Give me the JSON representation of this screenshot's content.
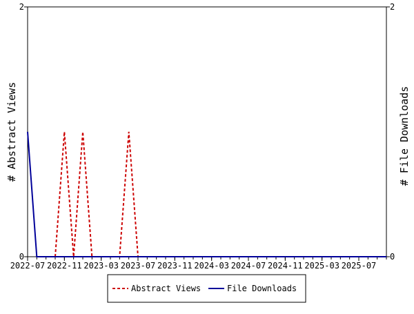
{
  "chart_data": {
    "type": "line",
    "x_tick_labels": [
      "2022-07",
      "2022-11",
      "2023-03",
      "2023-07",
      "2023-11",
      "2024-03",
      "2024-07",
      "2024-11",
      "2025-03",
      "2025-07"
    ],
    "x_tick_months": [
      "2022-07",
      "2022-11",
      "2023-03",
      "2023-07",
      "2023-11",
      "2024-03",
      "2024-07",
      "2024-11",
      "2025-03",
      "2025-07"
    ],
    "x_range": [
      "2022-07",
      "2025-10"
    ],
    "y_left": {
      "label": "# Abstract Views",
      "range": [
        0,
        2
      ],
      "ticks": [
        "0",
        "2"
      ]
    },
    "y_right": {
      "label": "# File Downloads",
      "range": [
        0,
        2
      ],
      "ticks": [
        "0",
        "2"
      ]
    },
    "grid": false,
    "legend_position": "bottom",
    "series": [
      {
        "name": "Abstract Views",
        "axis": "left",
        "color": "#cc0000",
        "style": "dashed",
        "points": [
          [
            "2022-10",
            0
          ],
          [
            "2022-11",
            1
          ],
          [
            "2022-12",
            0
          ],
          [
            "2023-01",
            1
          ],
          [
            "2023-02",
            0
          ],
          [
            "2023-05",
            0
          ],
          [
            "2023-06",
            1
          ],
          [
            "2023-07",
            0
          ],
          [
            "2025-10",
            0
          ]
        ]
      },
      {
        "name": "File Downloads",
        "axis": "right",
        "color": "#000099",
        "style": "solid",
        "points": [
          [
            "2022-07",
            1
          ],
          [
            "2022-08",
            0
          ],
          [
            "2025-10",
            0
          ]
        ]
      }
    ]
  }
}
